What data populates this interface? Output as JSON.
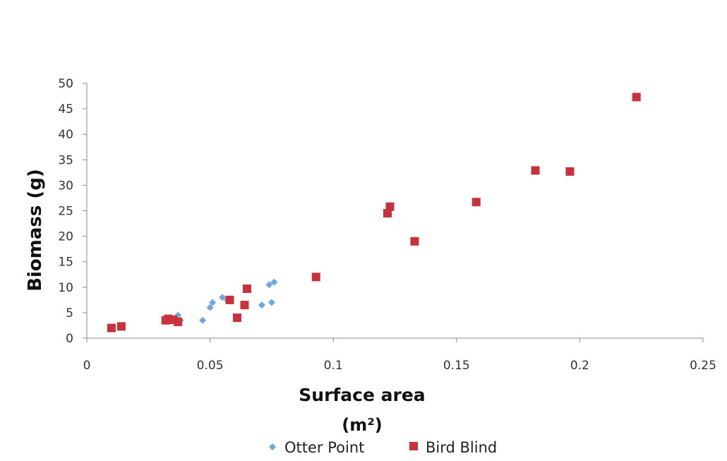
{
  "chart_data": {
    "type": "scatter",
    "title": "",
    "xlabel": "Surface area",
    "xlabel_units": "(m²)",
    "ylabel": "Biomass (g)",
    "xlim": [
      0,
      0.25
    ],
    "ylim": [
      0,
      50
    ],
    "x_ticks": [
      "0",
      "0.05",
      "0.1",
      "0.15",
      "0.2",
      "0.25"
    ],
    "y_ticks": [
      "0",
      "5",
      "10",
      "15",
      "20",
      "25",
      "30",
      "35",
      "40",
      "45",
      "50"
    ],
    "grid": false,
    "legend_position": "bottom",
    "series": [
      {
        "name": "Otter Point",
        "color": "#6fa8dc",
        "marker": "diamond",
        "points": [
          [
            0.036,
            4.0
          ],
          [
            0.037,
            4.5
          ],
          [
            0.038,
            3.5
          ],
          [
            0.047,
            3.5
          ],
          [
            0.05,
            6.0
          ],
          [
            0.051,
            7.0
          ],
          [
            0.055,
            8.0
          ],
          [
            0.057,
            7.5
          ],
          [
            0.071,
            6.5
          ],
          [
            0.074,
            10.5
          ],
          [
            0.075,
            7.0
          ],
          [
            0.076,
            11.0
          ]
        ]
      },
      {
        "name": "Bird Blind",
        "color": "#c8323c",
        "marker": "square",
        "points": [
          [
            0.01,
            2.0
          ],
          [
            0.014,
            2.3
          ],
          [
            0.032,
            3.5
          ],
          [
            0.033,
            3.8
          ],
          [
            0.035,
            3.6
          ],
          [
            0.037,
            3.2
          ],
          [
            0.058,
            7.5
          ],
          [
            0.061,
            4.0
          ],
          [
            0.064,
            6.5
          ],
          [
            0.065,
            9.7
          ],
          [
            0.093,
            12.0
          ],
          [
            0.122,
            24.5
          ],
          [
            0.123,
            25.8
          ],
          [
            0.133,
            19.0
          ],
          [
            0.158,
            26.7
          ],
          [
            0.182,
            32.9
          ],
          [
            0.196,
            32.7
          ],
          [
            0.223,
            47.3
          ]
        ]
      }
    ]
  }
}
